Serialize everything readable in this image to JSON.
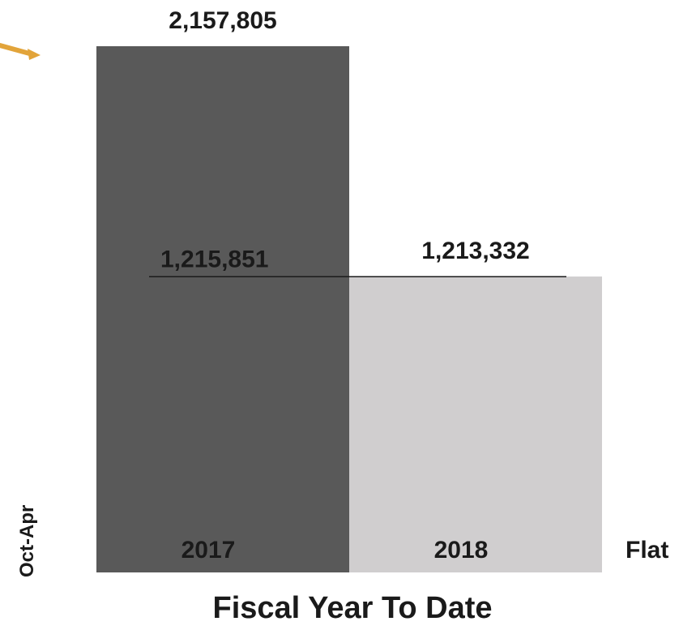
{
  "chart_data": {
    "type": "bar",
    "title": "Fiscal Year To Date",
    "period_label": "Oct-Apr",
    "categories": [
      "2017",
      "2018"
    ],
    "values": [
      2157805,
      1213332
    ],
    "data_labels": [
      "2,157,805",
      "1,213,332"
    ],
    "colors": [
      "#595959",
      "#d0cecf"
    ],
    "reference_line": {
      "value": 1215851,
      "label": "1,215,851"
    },
    "annotation": "Flat",
    "ylim": [
      0,
      2157805
    ],
    "grid": false
  },
  "decorations": {
    "partial_arrow_color": "#e2a43a"
  }
}
